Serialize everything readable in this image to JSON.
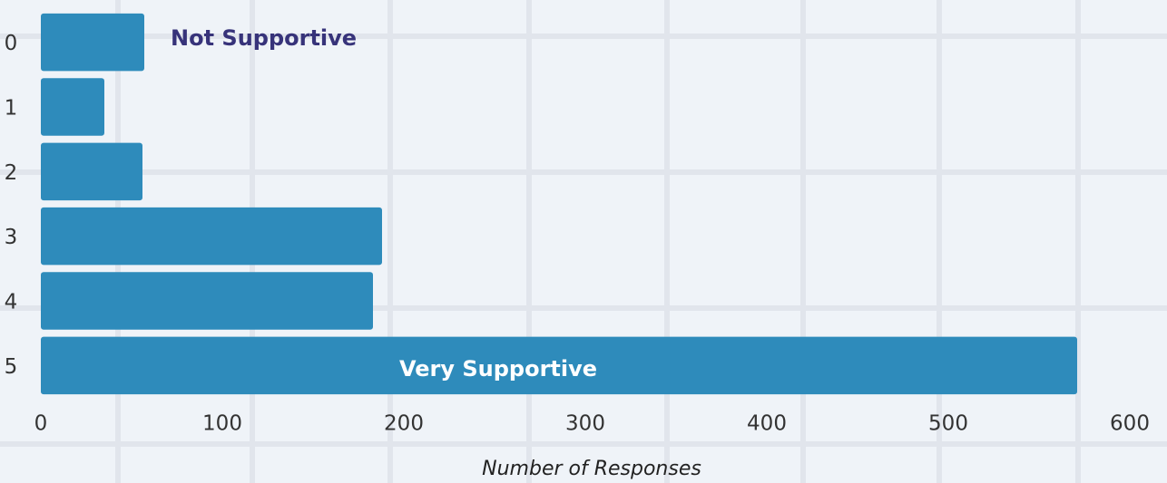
{
  "chart_data": {
    "type": "barh",
    "x_label": "Number of Responses",
    "categories": [
      "0",
      "1",
      "2",
      "3",
      "4",
      "5"
    ],
    "values": [
      57,
      35,
      56,
      188,
      183,
      571
    ],
    "color": "#2e8bbb",
    "xlim": [
      0,
      600
    ],
    "xticks": [
      0,
      100,
      200,
      300,
      400,
      500,
      600
    ],
    "annotations": [
      "Not Supportive",
      "Very Supportive"
    ]
  }
}
